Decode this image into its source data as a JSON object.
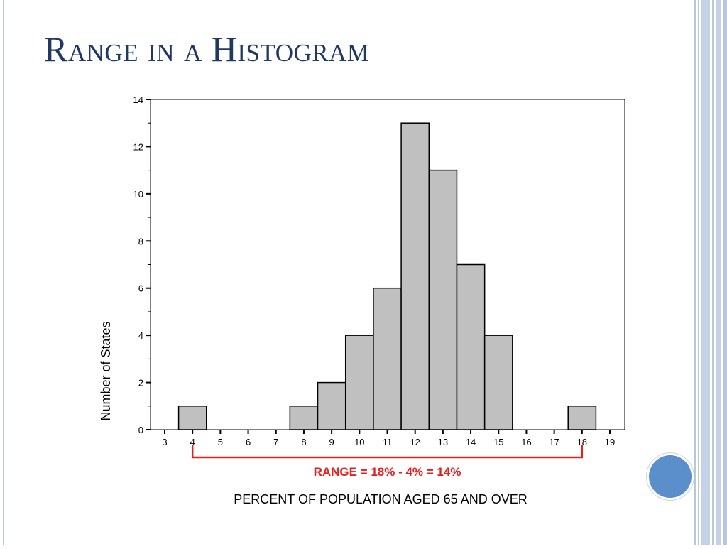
{
  "slide": {
    "title": "Range in a Histogram"
  },
  "colors": {
    "title": "#1f3864",
    "bar_fill": "#c0c0c0",
    "range_annotation": "#e32020",
    "accent_circle": "#5b8fcb"
  },
  "chart_data": {
    "type": "bar",
    "categories": [
      "3",
      "4",
      "5",
      "6",
      "7",
      "8",
      "9",
      "10",
      "11",
      "12",
      "13",
      "14",
      "15",
      "16",
      "17",
      "18",
      "19"
    ],
    "values": [
      0,
      1,
      0,
      0,
      0,
      1,
      2,
      4,
      6,
      13,
      11,
      7,
      4,
      0,
      0,
      1,
      0
    ],
    "xlabel": "PERCENT OF POPULATION AGED 65 AND OVER",
    "ylabel": "Number of States",
    "ylim": [
      0,
      14
    ],
    "yticks": [
      0,
      2,
      4,
      6,
      8,
      10,
      12,
      14
    ],
    "grid": false,
    "annotation": {
      "text": "RANGE = 18% - 4%  = 14%",
      "from": 4,
      "to": 18
    }
  }
}
